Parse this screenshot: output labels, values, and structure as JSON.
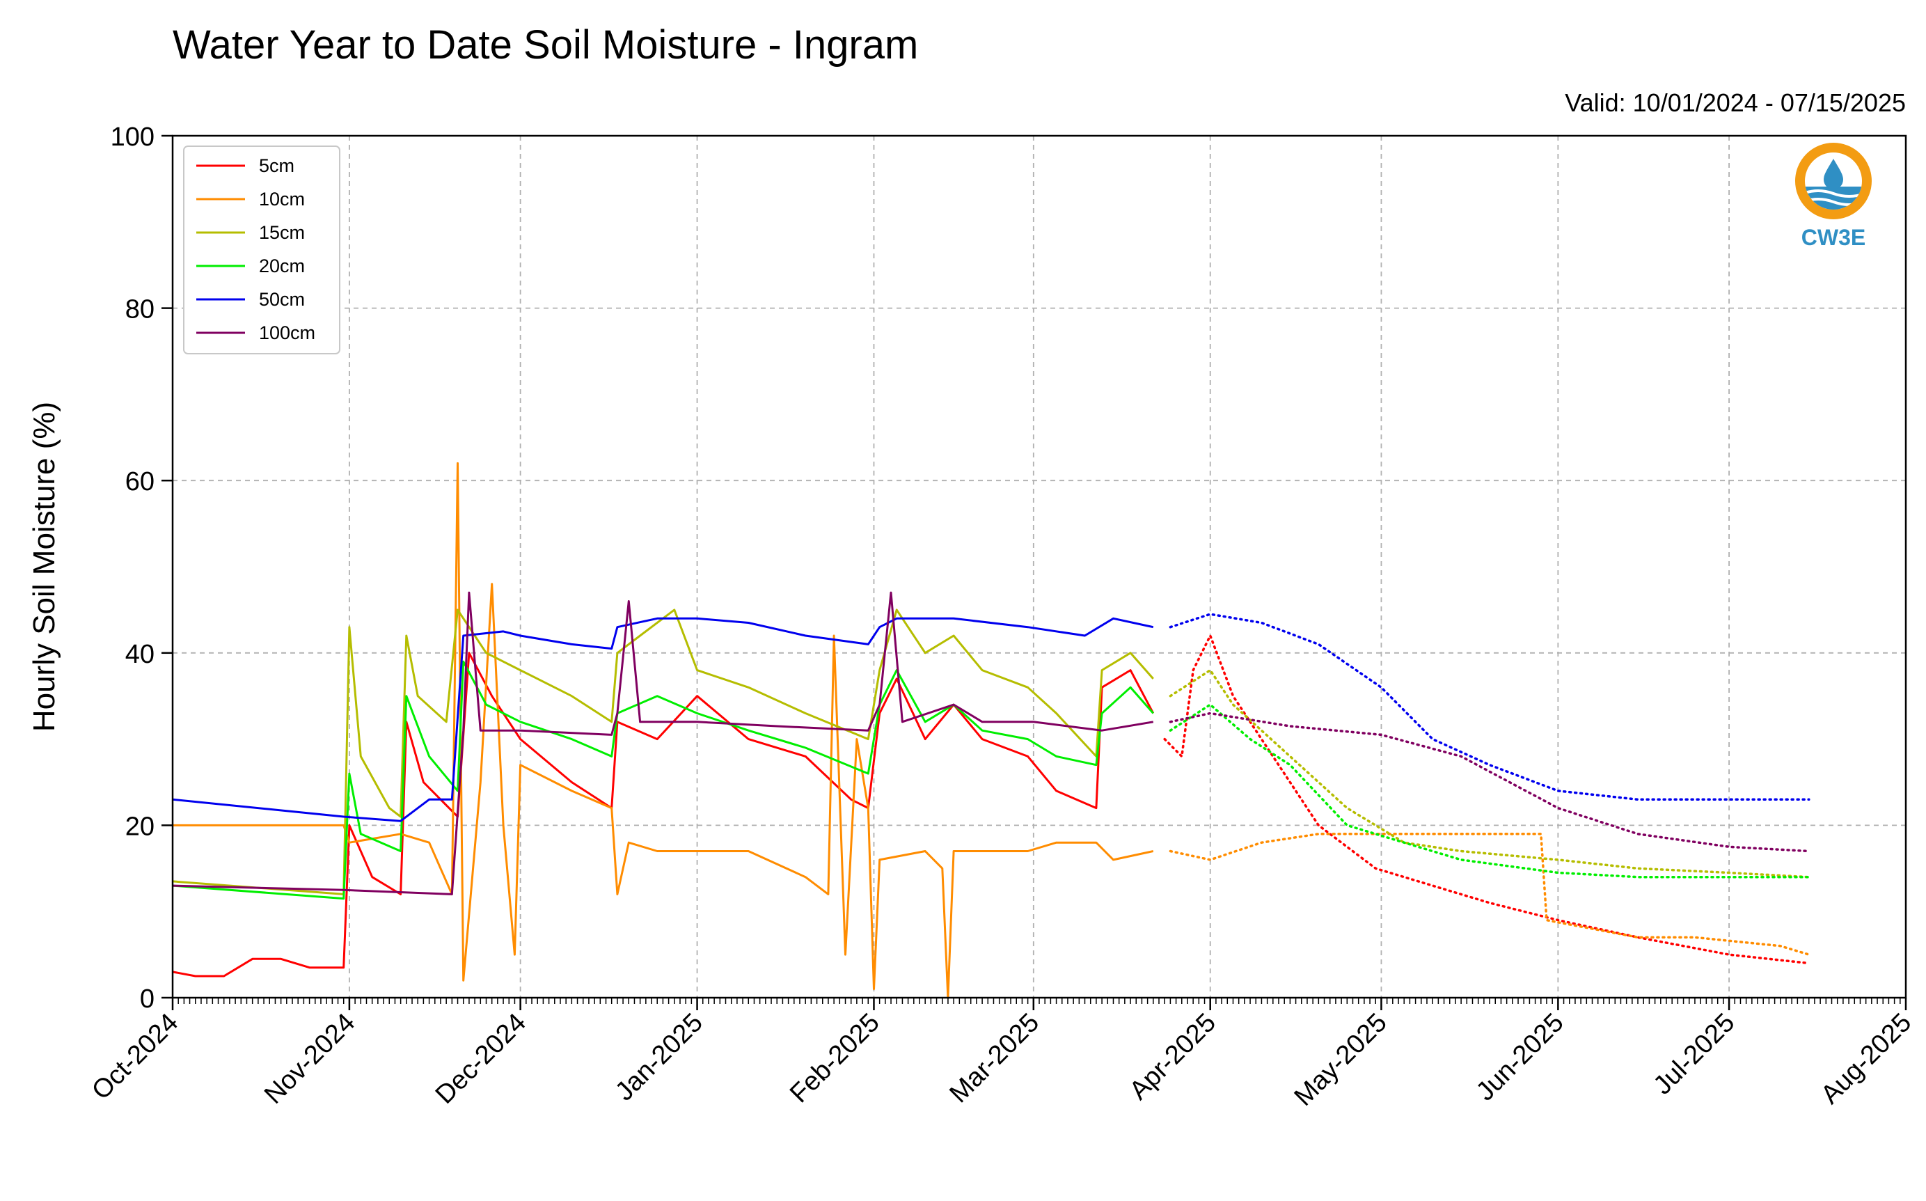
{
  "chart_data": {
    "type": "line",
    "title": "Water Year to Date Soil Moisture - Ingram",
    "subtitle": "Valid: 10/01/2024 - 07/15/2025",
    "xlabel": "",
    "ylabel": "Hourly Soil Moisture (%)",
    "ylim": [
      0,
      100
    ],
    "xlim": [
      "2024-10-01",
      "2025-08-01"
    ],
    "yticks": [
      "0",
      "20",
      "40",
      "60",
      "80",
      "100"
    ],
    "xticks": [
      {
        "date": "2024-10-01",
        "label": "Oct-2024"
      },
      {
        "date": "2024-11-01",
        "label": "Nov-2024"
      },
      {
        "date": "2024-12-01",
        "label": "Dec-2024"
      },
      {
        "date": "2025-01-01",
        "label": "Jan-2025"
      },
      {
        "date": "2025-02-01",
        "label": "Feb-2025"
      },
      {
        "date": "2025-03-01",
        "label": "Mar-2025"
      },
      {
        "date": "2025-04-01",
        "label": "Apr-2025"
      },
      {
        "date": "2025-05-01",
        "label": "May-2025"
      },
      {
        "date": "2025-06-01",
        "label": "Jun-2025"
      },
      {
        "date": "2025-07-01",
        "label": "Jul-2025"
      },
      {
        "date": "2025-08-01",
        "label": "Aug-2025"
      }
    ],
    "grid": true,
    "legend_position": "top-left",
    "series": [
      {
        "name": "5cm",
        "color": "#ff0000",
        "points": [
          [
            "2024-10-01",
            3
          ],
          [
            "2024-10-05",
            2.5
          ],
          [
            "2024-10-10",
            2.5
          ],
          [
            "2024-10-15",
            4.5
          ],
          [
            "2024-10-20",
            4.5
          ],
          [
            "2024-10-25",
            3.5
          ],
          [
            "2024-10-31",
            3.5
          ],
          [
            "2024-11-01",
            20
          ],
          [
            "2024-11-05",
            14
          ],
          [
            "2024-11-10",
            12
          ],
          [
            "2024-11-11",
            32
          ],
          [
            "2024-11-14",
            25
          ],
          [
            "2024-11-20",
            21
          ],
          [
            "2024-11-22",
            40
          ],
          [
            "2024-11-26",
            35
          ],
          [
            "2024-12-01",
            30
          ],
          [
            "2024-12-10",
            25
          ],
          [
            "2024-12-17",
            22
          ],
          [
            "2024-12-18",
            32
          ],
          [
            "2024-12-25",
            30
          ],
          [
            "2025-01-01",
            35
          ],
          [
            "2025-01-10",
            30
          ],
          [
            "2025-01-20",
            28
          ],
          [
            "2025-01-28",
            23
          ],
          [
            "2025-01-31",
            22
          ],
          [
            "2025-02-02",
            33
          ],
          [
            "2025-02-05",
            37
          ],
          [
            "2025-02-10",
            30
          ],
          [
            "2025-02-15",
            34
          ],
          [
            "2025-02-20",
            30
          ],
          [
            "2025-02-28",
            28
          ],
          [
            "2025-03-05",
            24
          ],
          [
            "2025-03-12",
            22
          ],
          [
            "2025-03-13",
            36
          ],
          [
            "2025-03-18",
            38
          ],
          [
            "2025-03-22",
            33
          ]
        ],
        "dotted_points": [
          [
            "2025-03-24",
            30
          ],
          [
            "2025-03-27",
            28
          ],
          [
            "2025-03-29",
            38
          ],
          [
            "2025-04-01",
            42
          ],
          [
            "2025-04-05",
            35
          ],
          [
            "2025-04-10",
            30
          ],
          [
            "2025-04-20",
            20
          ],
          [
            "2025-04-30",
            15
          ],
          [
            "2025-05-10",
            13
          ],
          [
            "2025-05-20",
            11
          ],
          [
            "2025-06-01",
            9
          ],
          [
            "2025-06-15",
            7
          ],
          [
            "2025-07-01",
            5
          ],
          [
            "2025-07-15",
            4
          ]
        ]
      },
      {
        "name": "10cm",
        "color": "#ff8c00",
        "points": [
          [
            "2024-10-01",
            20
          ],
          [
            "2024-10-31",
            20
          ],
          [
            "2024-11-01",
            18
          ],
          [
            "2024-11-10",
            19
          ],
          [
            "2024-11-15",
            18
          ],
          [
            "2024-11-19",
            12
          ],
          [
            "2024-11-20",
            62
          ],
          [
            "2024-11-21",
            2
          ],
          [
            "2024-11-24",
            25
          ],
          [
            "2024-11-26",
            48
          ],
          [
            "2024-11-28",
            20
          ],
          [
            "2024-11-30",
            5
          ],
          [
            "2024-12-01",
            27
          ],
          [
            "2024-12-10",
            24
          ],
          [
            "2024-12-17",
            22
          ],
          [
            "2024-12-18",
            12
          ],
          [
            "2024-12-20",
            18
          ],
          [
            "2024-12-25",
            17
          ],
          [
            "2025-01-01",
            17
          ],
          [
            "2025-01-10",
            17
          ],
          [
            "2025-01-20",
            14
          ],
          [
            "2025-01-24",
            12
          ],
          [
            "2025-01-25",
            42
          ],
          [
            "2025-01-27",
            5
          ],
          [
            "2025-01-29",
            30
          ],
          [
            "2025-01-31",
            22
          ],
          [
            "2025-02-01",
            1
          ],
          [
            "2025-02-02",
            16
          ],
          [
            "2025-02-10",
            17
          ],
          [
            "2025-02-13",
            15
          ],
          [
            "2025-02-14",
            0
          ],
          [
            "2025-02-15",
            17
          ],
          [
            "2025-02-28",
            17
          ],
          [
            "2025-03-05",
            18
          ],
          [
            "2025-03-12",
            18
          ],
          [
            "2025-03-15",
            16
          ],
          [
            "2025-03-22",
            17
          ]
        ],
        "dotted_points": [
          [
            "2025-03-25",
            17
          ],
          [
            "2025-04-01",
            16
          ],
          [
            "2025-04-10",
            18
          ],
          [
            "2025-04-20",
            19
          ],
          [
            "2025-05-01",
            19
          ],
          [
            "2025-05-15",
            19
          ],
          [
            "2025-05-29",
            19
          ],
          [
            "2025-05-30",
            9
          ],
          [
            "2025-06-15",
            7
          ],
          [
            "2025-06-25",
            7
          ],
          [
            "2025-07-10",
            6
          ],
          [
            "2025-07-15",
            5
          ]
        ]
      },
      {
        "name": "15cm",
        "color": "#b5bd00",
        "points": [
          [
            "2024-10-01",
            13.5
          ],
          [
            "2024-10-31",
            12
          ],
          [
            "2024-11-01",
            43
          ],
          [
            "2024-11-03",
            28
          ],
          [
            "2024-11-08",
            22
          ],
          [
            "2024-11-10",
            21
          ],
          [
            "2024-11-11",
            42
          ],
          [
            "2024-11-13",
            35
          ],
          [
            "2024-11-18",
            32
          ],
          [
            "2024-11-20",
            45
          ],
          [
            "2024-11-25",
            40
          ],
          [
            "2024-12-01",
            38
          ],
          [
            "2024-12-10",
            35
          ],
          [
            "2024-12-17",
            32
          ],
          [
            "2024-12-18",
            40
          ],
          [
            "2024-12-22",
            42
          ],
          [
            "2024-12-28",
            45
          ],
          [
            "2025-01-01",
            38
          ],
          [
            "2025-01-10",
            36
          ],
          [
            "2025-01-20",
            33
          ],
          [
            "2025-01-31",
            30
          ],
          [
            "2025-02-02",
            38
          ],
          [
            "2025-02-05",
            45
          ],
          [
            "2025-02-10",
            40
          ],
          [
            "2025-02-15",
            42
          ],
          [
            "2025-02-20",
            38
          ],
          [
            "2025-02-28",
            36
          ],
          [
            "2025-03-05",
            33
          ],
          [
            "2025-03-12",
            28
          ],
          [
            "2025-03-13",
            38
          ],
          [
            "2025-03-18",
            40
          ],
          [
            "2025-03-22",
            37
          ]
        ],
        "dotted_points": [
          [
            "2025-03-25",
            35
          ],
          [
            "2025-04-01",
            38
          ],
          [
            "2025-04-05",
            34
          ],
          [
            "2025-04-15",
            28
          ],
          [
            "2025-04-25",
            22
          ],
          [
            "2025-05-05",
            18
          ],
          [
            "2025-05-15",
            17
          ],
          [
            "2025-06-01",
            16
          ],
          [
            "2025-06-15",
            15
          ],
          [
            "2025-07-01",
            14.5
          ],
          [
            "2025-07-15",
            14
          ]
        ]
      },
      {
        "name": "20cm",
        "color": "#00ee00",
        "points": [
          [
            "2024-10-01",
            13
          ],
          [
            "2024-10-31",
            11.5
          ],
          [
            "2024-11-01",
            26
          ],
          [
            "2024-11-03",
            19
          ],
          [
            "2024-11-10",
            17
          ],
          [
            "2024-11-11",
            35
          ],
          [
            "2024-11-15",
            28
          ],
          [
            "2024-11-20",
            24
          ],
          [
            "2024-11-21",
            39
          ],
          [
            "2024-11-25",
            34
          ],
          [
            "2024-12-01",
            32
          ],
          [
            "2024-12-10",
            30
          ],
          [
            "2024-12-17",
            28
          ],
          [
            "2024-12-18",
            33
          ],
          [
            "2024-12-25",
            35
          ],
          [
            "2025-01-01",
            33
          ],
          [
            "2025-01-10",
            31
          ],
          [
            "2025-01-20",
            29
          ],
          [
            "2025-01-31",
            26
          ],
          [
            "2025-02-02",
            34
          ],
          [
            "2025-02-05",
            38
          ],
          [
            "2025-02-10",
            32
          ],
          [
            "2025-02-15",
            34
          ],
          [
            "2025-02-20",
            31
          ],
          [
            "2025-02-28",
            30
          ],
          [
            "2025-03-05",
            28
          ],
          [
            "2025-03-12",
            27
          ],
          [
            "2025-03-13",
            33
          ],
          [
            "2025-03-18",
            36
          ],
          [
            "2025-03-22",
            33
          ]
        ],
        "dotted_points": [
          [
            "2025-03-25",
            31
          ],
          [
            "2025-04-01",
            34
          ],
          [
            "2025-04-08",
            30
          ],
          [
            "2025-04-15",
            27
          ],
          [
            "2025-04-25",
            20
          ],
          [
            "2025-05-05",
            18
          ],
          [
            "2025-05-15",
            16
          ],
          [
            "2025-06-01",
            14.5
          ],
          [
            "2025-06-15",
            14
          ],
          [
            "2025-07-01",
            14
          ],
          [
            "2025-07-15",
            14
          ]
        ]
      },
      {
        "name": "50cm",
        "color": "#0000ee",
        "points": [
          [
            "2024-10-01",
            23
          ],
          [
            "2024-10-31",
            21
          ],
          [
            "2024-11-10",
            20.5
          ],
          [
            "2024-11-15",
            23
          ],
          [
            "2024-11-19",
            23
          ],
          [
            "2024-11-21",
            42
          ],
          [
            "2024-11-28",
            42.5
          ],
          [
            "2024-12-01",
            42
          ],
          [
            "2024-12-10",
            41
          ],
          [
            "2024-12-17",
            40.5
          ],
          [
            "2024-12-18",
            43
          ],
          [
            "2024-12-25",
            44
          ],
          [
            "2025-01-01",
            44
          ],
          [
            "2025-01-10",
            43.5
          ],
          [
            "2025-01-20",
            42
          ],
          [
            "2025-01-31",
            41
          ],
          [
            "2025-02-02",
            43
          ],
          [
            "2025-02-05",
            44
          ],
          [
            "2025-02-15",
            44
          ],
          [
            "2025-02-28",
            43
          ],
          [
            "2025-03-10",
            42
          ],
          [
            "2025-03-15",
            44
          ],
          [
            "2025-03-22",
            43
          ]
        ],
        "dotted_points": [
          [
            "2025-03-25",
            43
          ],
          [
            "2025-04-01",
            44.5
          ],
          [
            "2025-04-10",
            43.5
          ],
          [
            "2025-04-20",
            41
          ],
          [
            "2025-05-01",
            36
          ],
          [
            "2025-05-10",
            30
          ],
          [
            "2025-05-20",
            27
          ],
          [
            "2025-06-01",
            24
          ],
          [
            "2025-06-15",
            23
          ],
          [
            "2025-07-01",
            23
          ],
          [
            "2025-07-15",
            23
          ]
        ]
      },
      {
        "name": "100cm",
        "color": "#800060",
        "points": [
          [
            "2024-10-01",
            13
          ],
          [
            "2024-10-31",
            12.5
          ],
          [
            "2024-11-19",
            12
          ],
          [
            "2024-11-21",
            31
          ],
          [
            "2024-11-22",
            47
          ],
          [
            "2024-11-24",
            31
          ],
          [
            "2024-12-01",
            31
          ],
          [
            "2024-12-17",
            30.5
          ],
          [
            "2024-12-18",
            33
          ],
          [
            "2024-12-20",
            46
          ],
          [
            "2024-12-22",
            32
          ],
          [
            "2025-01-01",
            32
          ],
          [
            "2025-01-15",
            31.5
          ],
          [
            "2025-01-31",
            31
          ],
          [
            "2025-02-02",
            34
          ],
          [
            "2025-02-04",
            47
          ],
          [
            "2025-02-06",
            32
          ],
          [
            "2025-02-15",
            34
          ],
          [
            "2025-02-20",
            32
          ],
          [
            "2025-03-01",
            32
          ],
          [
            "2025-03-13",
            31
          ],
          [
            "2025-03-22",
            32
          ]
        ],
        "dotted_points": [
          [
            "2025-03-25",
            32
          ],
          [
            "2025-04-01",
            33
          ],
          [
            "2025-04-15",
            31.5
          ],
          [
            "2025-05-01",
            30.5
          ],
          [
            "2025-05-15",
            28
          ],
          [
            "2025-06-01",
            22
          ],
          [
            "2025-06-15",
            19
          ],
          [
            "2025-07-01",
            17.5
          ],
          [
            "2025-07-15",
            17
          ]
        ]
      }
    ]
  },
  "logo": {
    "text": "CW3E",
    "colors": {
      "ring": "#f39c12",
      "wave": "#2f8fc4",
      "drop": "#2f8fc4"
    }
  }
}
